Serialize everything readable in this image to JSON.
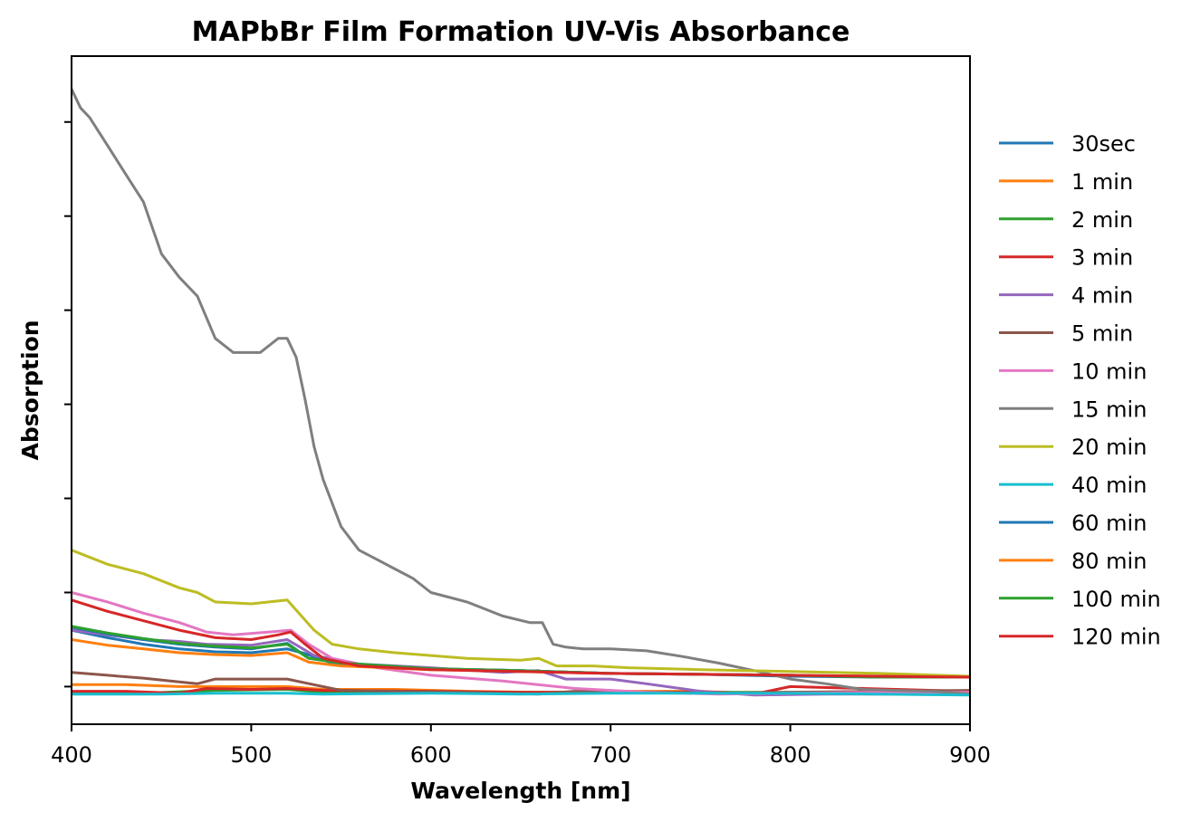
{
  "chart_data": {
    "type": "line",
    "title": "MAPbBr Film Formation UV-Vis Absorbance",
    "xlabel": "Wavelength [nm]",
    "ylabel": "Absorption",
    "xlim": [
      400,
      900
    ],
    "ylim": [
      -0.4,
      6.7
    ],
    "x_ticks": [
      400,
      500,
      600,
      700,
      800,
      900
    ],
    "y_ticks": [
      0,
      1,
      2,
      3,
      4,
      5,
      6
    ],
    "y_tick_labels_shown": false,
    "grid": false,
    "legend_position": "right, outside plot",
    "series": [
      {
        "name": "30sec",
        "color": "#1f77b4",
        "points": [
          [
            400,
            0.6
          ],
          [
            420,
            0.52
          ],
          [
            440,
            0.45
          ],
          [
            460,
            0.4
          ],
          [
            480,
            0.37
          ],
          [
            500,
            0.36
          ],
          [
            520,
            0.4
          ],
          [
            530,
            0.35
          ],
          [
            545,
            0.25
          ],
          [
            560,
            0.22
          ],
          [
            600,
            0.19
          ],
          [
            650,
            0.17
          ],
          [
            700,
            0.14
          ],
          [
            750,
            0.13
          ],
          [
            800,
            0.11
          ],
          [
            850,
            0.1
          ],
          [
            900,
            0.1
          ]
        ]
      },
      {
        "name": "1 min",
        "color": "#ff7f0e",
        "points": [
          [
            400,
            0.02
          ],
          [
            430,
            0.02
          ],
          [
            460,
            0.0
          ],
          [
            480,
            0.0
          ],
          [
            520,
            0.0
          ],
          [
            540,
            -0.03
          ],
          [
            580,
            -0.03
          ],
          [
            620,
            -0.05
          ],
          [
            660,
            -0.06
          ],
          [
            700,
            -0.05
          ],
          [
            750,
            -0.05
          ],
          [
            790,
            -0.08
          ],
          [
            830,
            -0.06
          ],
          [
            870,
            -0.06
          ],
          [
            900,
            -0.07
          ]
        ]
      },
      {
        "name": "2 min",
        "color": "#2ca02c",
        "points": [
          [
            400,
            -0.07
          ],
          [
            440,
            -0.07
          ],
          [
            480,
            -0.04
          ],
          [
            520,
            -0.03
          ],
          [
            540,
            -0.06
          ],
          [
            600,
            -0.06
          ],
          [
            660,
            -0.06
          ],
          [
            700,
            -0.06
          ],
          [
            760,
            -0.06
          ],
          [
            800,
            -0.06
          ],
          [
            850,
            -0.06
          ],
          [
            900,
            -0.06
          ]
        ]
      },
      {
        "name": "3 min",
        "color": "#d62728",
        "points": [
          [
            400,
            -0.05
          ],
          [
            430,
            -0.05
          ],
          [
            460,
            -0.07
          ],
          [
            475,
            -0.02
          ],
          [
            500,
            -0.03
          ],
          [
            520,
            -0.02
          ],
          [
            540,
            -0.04
          ],
          [
            600,
            -0.05
          ],
          [
            650,
            -0.06
          ],
          [
            700,
            -0.06
          ],
          [
            760,
            -0.06
          ],
          [
            780,
            -0.08
          ],
          [
            800,
            0.0
          ],
          [
            840,
            -0.02
          ],
          [
            880,
            -0.04
          ],
          [
            900,
            -0.05
          ]
        ]
      },
      {
        "name": "4 min",
        "color": "#9467bd",
        "points": [
          [
            400,
            0.6
          ],
          [
            420,
            0.55
          ],
          [
            440,
            0.5
          ],
          [
            460,
            0.48
          ],
          [
            475,
            0.45
          ],
          [
            500,
            0.44
          ],
          [
            520,
            0.5
          ],
          [
            535,
            0.33
          ],
          [
            560,
            0.24
          ],
          [
            600,
            0.2
          ],
          [
            640,
            0.15
          ],
          [
            660,
            0.17
          ],
          [
            675,
            0.08
          ],
          [
            700,
            0.08
          ],
          [
            720,
            0.03
          ],
          [
            750,
            -0.05
          ],
          [
            780,
            -0.09
          ],
          [
            820,
            -0.08
          ],
          [
            860,
            -0.08
          ],
          [
            900,
            -0.08
          ]
        ]
      },
      {
        "name": "5 min",
        "color": "#8c564b",
        "points": [
          [
            400,
            0.15
          ],
          [
            420,
            0.12
          ],
          [
            440,
            0.09
          ],
          [
            460,
            0.05
          ],
          [
            470,
            0.03
          ],
          [
            480,
            0.08
          ],
          [
            500,
            0.08
          ],
          [
            520,
            0.08
          ],
          [
            530,
            0.04
          ],
          [
            550,
            -0.04
          ],
          [
            580,
            -0.05
          ],
          [
            620,
            -0.06
          ],
          [
            660,
            -0.08
          ],
          [
            680,
            -0.05
          ],
          [
            700,
            -0.05
          ],
          [
            750,
            -0.07
          ],
          [
            800,
            -0.06
          ],
          [
            850,
            -0.05
          ],
          [
            900,
            -0.04
          ]
        ]
      },
      {
        "name": "10 min",
        "color": "#e377c2",
        "points": [
          [
            400,
            1.0
          ],
          [
            420,
            0.9
          ],
          [
            440,
            0.78
          ],
          [
            460,
            0.68
          ],
          [
            475,
            0.58
          ],
          [
            490,
            0.55
          ],
          [
            510,
            0.58
          ],
          [
            522,
            0.6
          ],
          [
            532,
            0.45
          ],
          [
            545,
            0.3
          ],
          [
            570,
            0.2
          ],
          [
            600,
            0.12
          ],
          [
            640,
            0.06
          ],
          [
            680,
            -0.02
          ],
          [
            720,
            -0.06
          ],
          [
            760,
            -0.08
          ],
          [
            800,
            -0.07
          ],
          [
            850,
            -0.06
          ],
          [
            900,
            -0.06
          ]
        ]
      },
      {
        "name": "15 min",
        "color": "#7f7f7f",
        "points": [
          [
            400,
            6.35
          ],
          [
            405,
            6.15
          ],
          [
            410,
            6.05
          ],
          [
            420,
            5.75
          ],
          [
            430,
            5.45
          ],
          [
            440,
            5.15
          ],
          [
            450,
            4.6
          ],
          [
            460,
            4.35
          ],
          [
            470,
            4.15
          ],
          [
            480,
            3.7
          ],
          [
            490,
            3.55
          ],
          [
            505,
            3.55
          ],
          [
            515,
            3.7
          ],
          [
            520,
            3.7
          ],
          [
            525,
            3.5
          ],
          [
            530,
            3.05
          ],
          [
            535,
            2.55
          ],
          [
            540,
            2.2
          ],
          [
            550,
            1.7
          ],
          [
            560,
            1.45
          ],
          [
            570,
            1.35
          ],
          [
            580,
            1.25
          ],
          [
            590,
            1.15
          ],
          [
            600,
            1.0
          ],
          [
            620,
            0.9
          ],
          [
            640,
            0.75
          ],
          [
            655,
            0.68
          ],
          [
            662,
            0.68
          ],
          [
            668,
            0.45
          ],
          [
            675,
            0.42
          ],
          [
            685,
            0.4
          ],
          [
            700,
            0.4
          ],
          [
            720,
            0.38
          ],
          [
            740,
            0.32
          ],
          [
            760,
            0.25
          ],
          [
            780,
            0.17
          ],
          [
            800,
            0.08
          ],
          [
            820,
            0.03
          ],
          [
            840,
            -0.03
          ],
          [
            860,
            -0.04
          ],
          [
            880,
            -0.05
          ],
          [
            900,
            -0.08
          ]
        ]
      },
      {
        "name": "20 min",
        "color": "#bcbd22",
        "points": [
          [
            400,
            1.45
          ],
          [
            420,
            1.3
          ],
          [
            440,
            1.2
          ],
          [
            460,
            1.05
          ],
          [
            470,
            1.0
          ],
          [
            480,
            0.9
          ],
          [
            500,
            0.88
          ],
          [
            520,
            0.92
          ],
          [
            535,
            0.6
          ],
          [
            545,
            0.45
          ],
          [
            560,
            0.4
          ],
          [
            580,
            0.36
          ],
          [
            600,
            0.33
          ],
          [
            620,
            0.3
          ],
          [
            650,
            0.28
          ],
          [
            660,
            0.3
          ],
          [
            670,
            0.22
          ],
          [
            690,
            0.22
          ],
          [
            710,
            0.2
          ],
          [
            750,
            0.18
          ],
          [
            800,
            0.16
          ],
          [
            850,
            0.14
          ],
          [
            900,
            0.11
          ]
        ]
      },
      {
        "name": "40 min",
        "color": "#17becf",
        "points": [
          [
            400,
            -0.08
          ],
          [
            450,
            -0.08
          ],
          [
            480,
            -0.07
          ],
          [
            520,
            -0.07
          ],
          [
            540,
            -0.08
          ],
          [
            600,
            -0.07
          ],
          [
            650,
            -0.08
          ],
          [
            700,
            -0.07
          ],
          [
            750,
            -0.07
          ],
          [
            800,
            -0.07
          ],
          [
            850,
            -0.08
          ],
          [
            900,
            -0.09
          ]
        ]
      },
      {
        "name": "60 min",
        "color": "#1f77b4",
        "points": [
          [
            400,
            0.63
          ],
          [
            420,
            0.56
          ],
          [
            440,
            0.5
          ],
          [
            460,
            0.45
          ],
          [
            480,
            0.42
          ],
          [
            500,
            0.4
          ],
          [
            520,
            0.46
          ],
          [
            532,
            0.3
          ],
          [
            550,
            0.25
          ],
          [
            600,
            0.19
          ],
          [
            650,
            0.17
          ],
          [
            700,
            0.14
          ],
          [
            750,
            0.13
          ],
          [
            800,
            0.12
          ],
          [
            850,
            0.1
          ],
          [
            900,
            0.1
          ]
        ]
      },
      {
        "name": "80 min",
        "color": "#ff7f0e",
        "points": [
          [
            400,
            0.5
          ],
          [
            420,
            0.44
          ],
          [
            440,
            0.4
          ],
          [
            460,
            0.36
          ],
          [
            480,
            0.34
          ],
          [
            500,
            0.33
          ],
          [
            520,
            0.36
          ],
          [
            532,
            0.26
          ],
          [
            550,
            0.22
          ],
          [
            600,
            0.18
          ],
          [
            650,
            0.16
          ],
          [
            700,
            0.14
          ],
          [
            750,
            0.13
          ],
          [
            800,
            0.12
          ],
          [
            850,
            0.11
          ],
          [
            900,
            0.1
          ]
        ]
      },
      {
        "name": "100 min",
        "color": "#2ca02c",
        "points": [
          [
            400,
            0.64
          ],
          [
            420,
            0.57
          ],
          [
            440,
            0.51
          ],
          [
            460,
            0.46
          ],
          [
            480,
            0.43
          ],
          [
            500,
            0.41
          ],
          [
            520,
            0.45
          ],
          [
            532,
            0.3
          ],
          [
            550,
            0.25
          ],
          [
            600,
            0.19
          ],
          [
            650,
            0.17
          ],
          [
            700,
            0.14
          ],
          [
            750,
            0.13
          ],
          [
            800,
            0.12
          ],
          [
            850,
            0.1
          ],
          [
            900,
            0.1
          ]
        ]
      },
      {
        "name": "120 min",
        "color": "#d62728",
        "points": [
          [
            400,
            0.92
          ],
          [
            420,
            0.8
          ],
          [
            440,
            0.7
          ],
          [
            460,
            0.6
          ],
          [
            480,
            0.52
          ],
          [
            500,
            0.5
          ],
          [
            515,
            0.55
          ],
          [
            522,
            0.58
          ],
          [
            530,
            0.45
          ],
          [
            540,
            0.3
          ],
          [
            560,
            0.22
          ],
          [
            600,
            0.18
          ],
          [
            650,
            0.16
          ],
          [
            700,
            0.14
          ],
          [
            750,
            0.13
          ],
          [
            800,
            0.12
          ],
          [
            850,
            0.11
          ],
          [
            900,
            0.1
          ]
        ]
      }
    ]
  }
}
